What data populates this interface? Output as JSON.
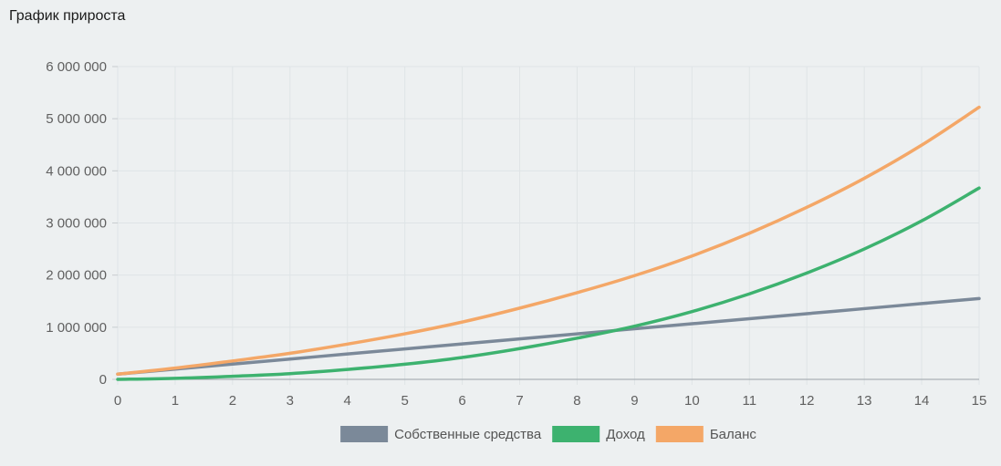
{
  "page": {
    "title": "График прироста"
  },
  "chart_data": {
    "type": "line",
    "title": "График прироста",
    "xlabel": "",
    "ylabel": "",
    "x": [
      0,
      1,
      2,
      3,
      4,
      5,
      6,
      7,
      8,
      9,
      10,
      11,
      12,
      13,
      14,
      15
    ],
    "xlim": [
      0,
      15
    ],
    "ylim": [
      0,
      6000000
    ],
    "y_ticks": [
      0,
      1000000,
      2000000,
      3000000,
      4000000,
      5000000,
      6000000
    ],
    "y_tick_labels": [
      "0",
      "1 000 000",
      "2 000 000",
      "3 000 000",
      "4 000 000",
      "5 000 000",
      "6 000 000"
    ],
    "x_tick_labels": [
      "0",
      "1",
      "2",
      "3",
      "4",
      "5",
      "6",
      "7",
      "8",
      "9",
      "10",
      "11",
      "12",
      "13",
      "14",
      "15"
    ],
    "grid": true,
    "legend_position": "bottom",
    "series": [
      {
        "name": "Собственные средства",
        "color": "#7b8999",
        "values": [
          100000,
          196667,
          293333,
          390000,
          486667,
          583333,
          680000,
          776667,
          873333,
          970000,
          1066667,
          1163333,
          1260000,
          1356667,
          1453333,
          1550000
        ]
      },
      {
        "name": "Доход",
        "color": "#3db26f",
        "values": [
          0,
          20000,
          60000,
          110000,
          190000,
          290000,
          420000,
          590000,
          790000,
          1020000,
          1300000,
          1640000,
          2040000,
          2500000,
          3040000,
          3670000
        ]
      },
      {
        "name": "Баланс",
        "color": "#f4a767",
        "values": [
          100000,
          216667,
          353333,
          500000,
          676667,
          873333,
          1100000,
          1366667,
          1663333,
          1990000,
          2366667,
          2803333,
          3300000,
          3856667,
          4493333,
          5220000
        ]
      }
    ]
  }
}
